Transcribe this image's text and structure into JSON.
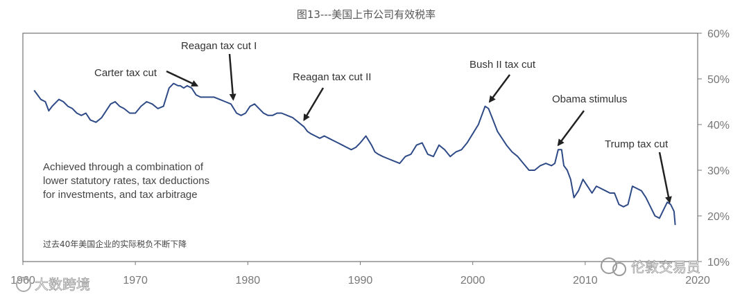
{
  "chart_data": {
    "type": "line",
    "title": "图13---美国上市公司有效税率",
    "xlabel": "",
    "ylabel": "",
    "xlim": [
      1960,
      2020
    ],
    "ylim": [
      10,
      60
    ],
    "x_ticks": [
      "1960",
      "1970",
      "1980",
      "1990",
      "2000",
      "2010",
      "2020"
    ],
    "y_ticks": [
      "60%",
      "50%",
      "40%",
      "30%",
      "20%",
      "10%"
    ],
    "grid": false,
    "series": [
      {
        "color": "#2e4a86",
        "x": [
          1961.0,
          1961.3,
          1961.6,
          1962.0,
          1962.3,
          1962.6,
          1962.8,
          1963.2,
          1963.6,
          1964.0,
          1964.4,
          1964.8,
          1965.2,
          1965.6,
          1966.0,
          1966.5,
          1967.0,
          1967.4,
          1967.8,
          1968.2,
          1968.6,
          1969.0,
          1969.5,
          1970.0,
          1970.5,
          1971.0,
          1971.5,
          1972.0,
          1972.5,
          1973.0,
          1973.4,
          1973.8,
          1974.0,
          1974.3,
          1974.6,
          1975.0,
          1975.4,
          1975.8,
          1976.2,
          1976.6,
          1977.0,
          1977.5,
          1978.0,
          1978.5,
          1979.0,
          1979.4,
          1979.8,
          1980.2,
          1980.6,
          1981.0,
          1981.4,
          1981.8,
          1982.2,
          1982.6,
          1983.0,
          1983.5,
          1984.0,
          1984.5,
          1985.0,
          1985.3,
          1985.6,
          1986.0,
          1986.4,
          1986.8,
          1987.2,
          1987.6,
          1988.0,
          1988.4,
          1988.8,
          1989.2,
          1989.6,
          1990.0,
          1990.5,
          1991.0,
          1991.3,
          1991.6,
          1992.0,
          1992.5,
          1993.0,
          1993.5,
          1994.0,
          1994.5,
          1995.0,
          1995.5,
          1996.0,
          1996.5,
          1997.0,
          1997.5,
          1998.0,
          1998.5,
          1999.0,
          1999.5,
          2000.0,
          2000.5,
          2000.8,
          2001.1,
          2001.4,
          2001.8,
          2002.2,
          2002.6,
          2003.0,
          2003.5,
          2004.0,
          2004.5,
          2005.0,
          2005.5,
          2006.0,
          2006.5,
          2007.0,
          2007.3,
          2007.6,
          2007.9,
          2008.1,
          2008.4,
          2008.7,
          2009.0,
          2009.4,
          2009.8,
          2010.2,
          2010.6,
          2011.0,
          2011.4,
          2011.8,
          2012.2,
          2012.6,
          2013.0,
          2013.4,
          2013.8,
          2014.2,
          2014.6,
          2015.0,
          2015.4,
          2015.8,
          2016.2,
          2016.6,
          2017.0,
          2017.3,
          2017.6,
          2017.9,
          2018.0
        ],
        "y": [
          47.5,
          46.5,
          45.5,
          45.0,
          43.0,
          44.0,
          44.5,
          45.5,
          45.0,
          44.0,
          43.5,
          42.5,
          42.0,
          42.5,
          41.0,
          40.5,
          41.5,
          43.0,
          44.5,
          45.0,
          44.0,
          43.5,
          42.5,
          42.5,
          44.0,
          45.0,
          44.5,
          43.5,
          44.0,
          48.0,
          49.0,
          48.5,
          48.5,
          48.0,
          48.5,
          48.0,
          46.5,
          46.0,
          46.0,
          46.0,
          46.0,
          45.5,
          45.0,
          44.5,
          42.5,
          42.0,
          42.5,
          44.0,
          44.5,
          43.5,
          42.5,
          42.0,
          42.0,
          42.5,
          42.5,
          42.0,
          41.5,
          40.5,
          39.5,
          38.5,
          38.0,
          37.5,
          37.0,
          37.5,
          37.0,
          36.5,
          36.0,
          35.5,
          35.0,
          34.5,
          35.0,
          36.0,
          37.5,
          35.5,
          34.0,
          33.5,
          33.0,
          32.5,
          32.0,
          31.5,
          33.0,
          33.5,
          35.5,
          36.0,
          33.5,
          33.0,
          35.5,
          34.5,
          33.0,
          34.0,
          34.5,
          36.0,
          38.0,
          40.0,
          42.0,
          44.0,
          43.5,
          41.0,
          38.5,
          37.0,
          35.5,
          34.0,
          33.0,
          31.5,
          30.0,
          30.0,
          31.0,
          31.5,
          31.0,
          31.5,
          34.5,
          34.5,
          31.0,
          30.0,
          28.0,
          24.0,
          25.5,
          28.0,
          26.5,
          25.0,
          26.5,
          26.0,
          25.5,
          25.0,
          25.0,
          22.5,
          22.0,
          22.5,
          26.5,
          26.0,
          25.5,
          24.0,
          22.0,
          20.0,
          19.5,
          21.5,
          23.0,
          22.5,
          21.0,
          18.0
        ]
      }
    ],
    "annotations": [
      {
        "text": "Carter tax cut",
        "x": 1975.5,
        "y": 48.5
      },
      {
        "text": "Reagan tax cut I",
        "x": 1978.7,
        "y": 45.5
      },
      {
        "text": "Reagan tax cut II",
        "x": 1985.0,
        "y": 41.0
      },
      {
        "text": "Bush II tax cut",
        "x": 2001.5,
        "y": 45.0
      },
      {
        "text": "Obama stimulus",
        "x": 2007.6,
        "y": 35.5
      },
      {
        "text": "Trump tax cut",
        "x": 2017.5,
        "y": 23.0
      }
    ],
    "note_lines": [
      "Achieved through a combination of",
      "lower statutory rates, tax deductions",
      "for investments, and tax arbitrage"
    ],
    "source_note": "过去40年美国企业的实际税负不断下降"
  },
  "watermarks": {
    "left": "大数跨境",
    "right": "伦敦交易员"
  }
}
